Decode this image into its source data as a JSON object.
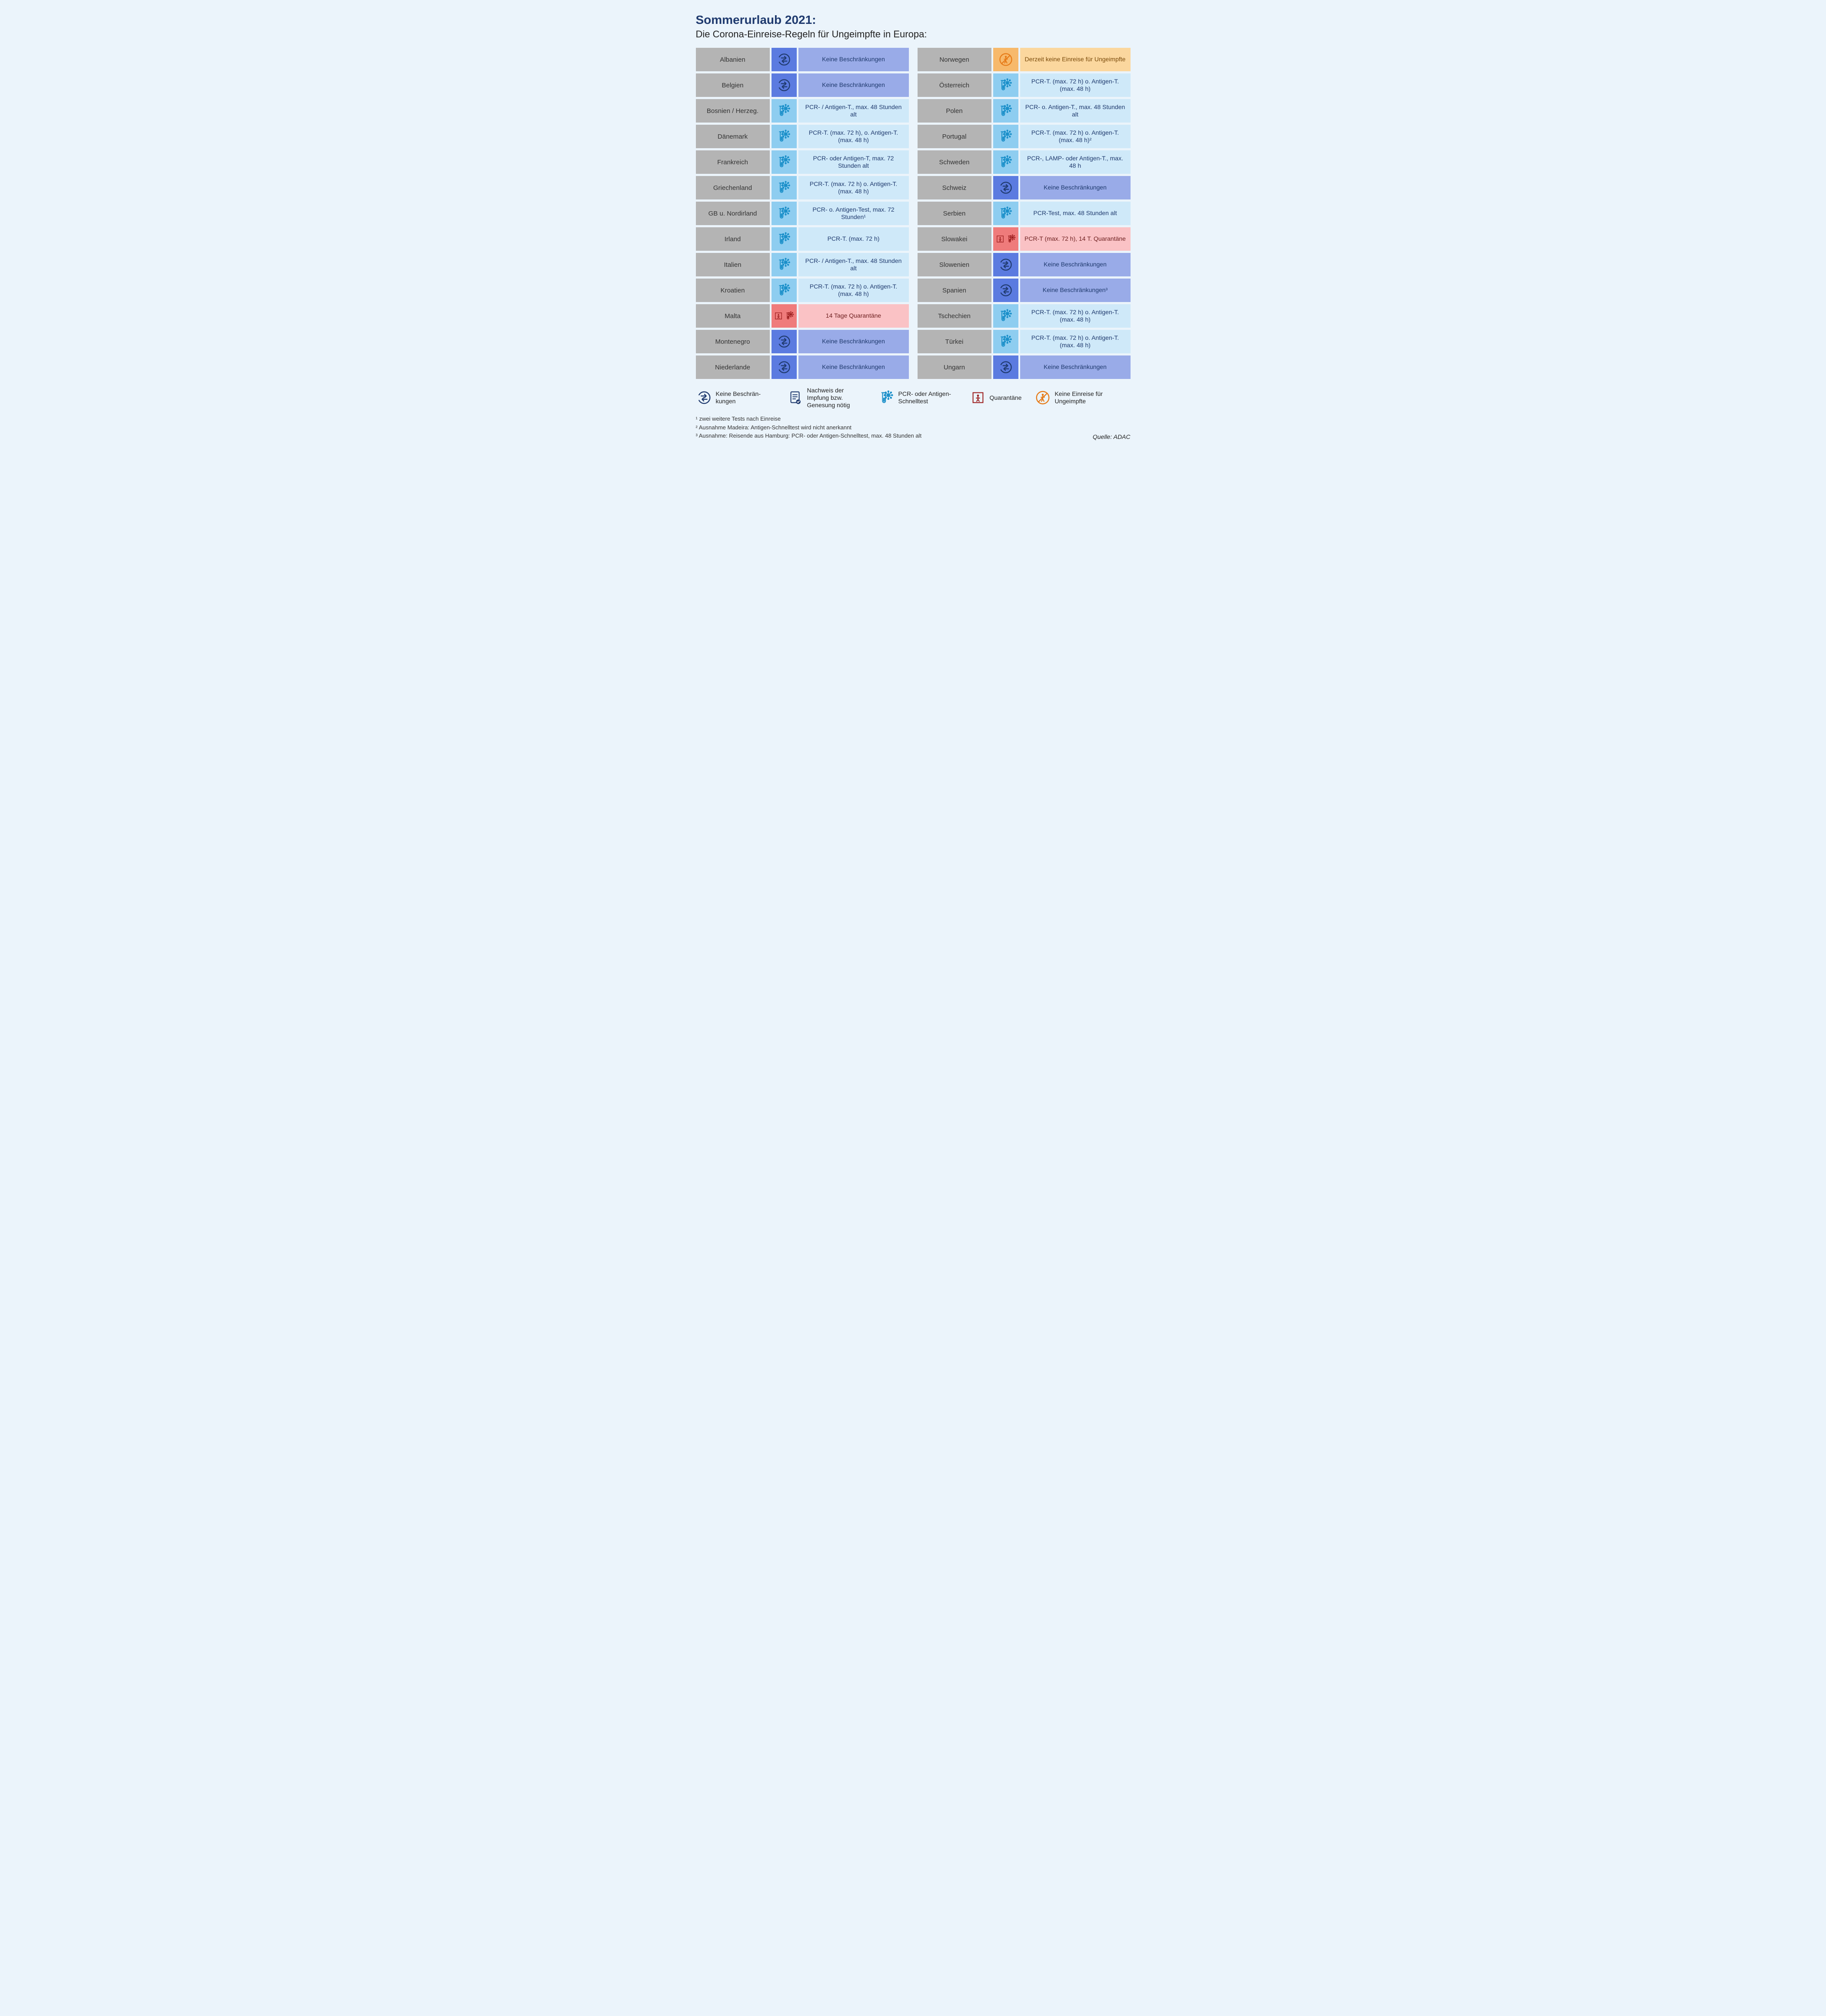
{
  "title": "Sommerurlaub 2021:",
  "subtitle": "Die Corona-Einreise-Regeln für Ungeimpfte in Europa:",
  "variants": {
    "none": {
      "icon_bg": "#5b7be0",
      "rule_bg": "#99abe8"
    },
    "test": {
      "icon_bg": "#8ecdf0",
      "rule_bg": "#cfe9f9"
    },
    "quar": {
      "icon_bg": "#ef7b7b",
      "rule_bg": "#fac2c5"
    },
    "noentry": {
      "icon_bg": "#f7b96b",
      "rule_bg": "#fbd79e"
    }
  },
  "colors": {
    "page_bg": "#ebf4fb",
    "country_bg": "#b4b4b4",
    "title_color": "#1f3a6e",
    "icon_stroke_none": "#1f3a6e",
    "icon_stroke_test": "#1a8fc9",
    "icon_stroke_quar": "#9c1f1f",
    "icon_stroke_noentry": "#e67a17"
  },
  "left": [
    {
      "country": "Albanien",
      "variant": "none",
      "icons": [
        "none"
      ],
      "rule": "Keine Beschränkungen"
    },
    {
      "country": "Belgien",
      "variant": "none",
      "icons": [
        "none"
      ],
      "rule": "Keine Beschränkungen"
    },
    {
      "country": "Bosnien / Herzeg.",
      "variant": "test",
      "icons": [
        "test"
      ],
      "rule": "PCR- / Antigen-T., max. 48 Stunden alt"
    },
    {
      "country": "Dänemark",
      "variant": "test",
      "icons": [
        "test"
      ],
      "rule": "PCR-T. (max. 72 h), o. Antigen-T. (max. 48 h)"
    },
    {
      "country": "Frankreich",
      "variant": "test",
      "icons": [
        "test"
      ],
      "rule": "PCR- oder Antigen-T, max. 72 Stunden alt"
    },
    {
      "country": "Griechenland",
      "variant": "test",
      "icons": [
        "test"
      ],
      "rule": "PCR-T. (max. 72 h) o. Antigen-T. (max. 48 h)"
    },
    {
      "country": "GB u. Nordirland",
      "variant": "test",
      "icons": [
        "test"
      ],
      "rule": "PCR- o. Antigen-Test, max. 72 Stunden¹"
    },
    {
      "country": "Irland",
      "variant": "test",
      "icons": [
        "test"
      ],
      "rule": "PCR-T. (max. 72 h)"
    },
    {
      "country": "Italien",
      "variant": "test",
      "icons": [
        "test"
      ],
      "rule": "PCR- / Antigen-T., max. 48 Stunden alt"
    },
    {
      "country": "Kroatien",
      "variant": "test",
      "icons": [
        "test"
      ],
      "rule": "PCR-T. (max. 72 h) o. Antigen-T. (max. 48 h)"
    },
    {
      "country": "Malta",
      "variant": "quar",
      "icons": [
        "quar",
        "test"
      ],
      "rule": "14 Tage Quarantäne"
    },
    {
      "country": "Montenegro",
      "variant": "none",
      "icons": [
        "none"
      ],
      "rule": "Keine Beschränkungen"
    },
    {
      "country": "Niederlande",
      "variant": "none",
      "icons": [
        "none"
      ],
      "rule": "Keine Beschränkungen"
    }
  ],
  "right": [
    {
      "country": "Norwegen",
      "variant": "noentry",
      "icons": [
        "noentry"
      ],
      "rule": "Derzeit keine Einreise für Ungeimpfte"
    },
    {
      "country": "Österreich",
      "variant": "test",
      "icons": [
        "test"
      ],
      "rule": "PCR-T. (max. 72 h) o. Antigen-T. (max. 48 h)"
    },
    {
      "country": "Polen",
      "variant": "test",
      "icons": [
        "test"
      ],
      "rule": "PCR- o. Antigen-T., max. 48 Stunden alt"
    },
    {
      "country": "Portugal",
      "variant": "test",
      "icons": [
        "test"
      ],
      "rule": "PCR-T. (max. 72 h) o. Antigen-T. (max. 48 h)²"
    },
    {
      "country": "Schweden",
      "variant": "test",
      "icons": [
        "test"
      ],
      "rule": "PCR-, LAMP- oder Antigen-T., max. 48 h"
    },
    {
      "country": "Schweiz",
      "variant": "none",
      "icons": [
        "none"
      ],
      "rule": "Keine Beschränkungen"
    },
    {
      "country": "Serbien",
      "variant": "test",
      "icons": [
        "test"
      ],
      "rule": "PCR-Test, max. 48 Stunden alt"
    },
    {
      "country": "Slowakei",
      "variant": "quar",
      "icons": [
        "quar",
        "test"
      ],
      "rule": "PCR-T (max. 72 h), 14 T. Quarantäne"
    },
    {
      "country": "Slowenien",
      "variant": "none",
      "icons": [
        "none"
      ],
      "rule": "Keine Beschränkungen"
    },
    {
      "country": "Spanien",
      "variant": "none",
      "icons": [
        "none"
      ],
      "rule": "Keine Beschränkungen³"
    },
    {
      "country": "Tschechien",
      "variant": "test",
      "icons": [
        "test"
      ],
      "rule": "PCR-T. (max. 72 h) o. Antigen-T. (max. 48 h)"
    },
    {
      "country": "Türkei",
      "variant": "test",
      "icons": [
        "test"
      ],
      "rule": "PCR-T. (max. 72 h) o. Antigen-T. (max. 48 h)"
    },
    {
      "country": "Ungarn",
      "variant": "none",
      "icons": [
        "none"
      ],
      "rule": "Keine Beschränkungen"
    }
  ],
  "legend": [
    {
      "icon": "none",
      "label": "Keine Beschrän­kungen"
    },
    {
      "icon": "proof",
      "label": "Nachweis der Impfung bzw. Genesung nötig"
    },
    {
      "icon": "test",
      "label": "PCR- oder Antigen-Schnelltest"
    },
    {
      "icon": "quar",
      "label": "Quarantäne"
    },
    {
      "icon": "noentry",
      "label": "Keine Einreise für Ungeimpfte"
    }
  ],
  "footnotes": [
    "¹ zwei weitere Tests nach Einreise",
    "² Ausnahme Madeira: Antigen-Schnelltest wird nicht anerkannt",
    "³ Ausnahme: Reisende aus Hamburg: PCR- oder Antigen-Schnelltest, max. 48 Stunden alt"
  ],
  "source": "Quelle: ADAC"
}
